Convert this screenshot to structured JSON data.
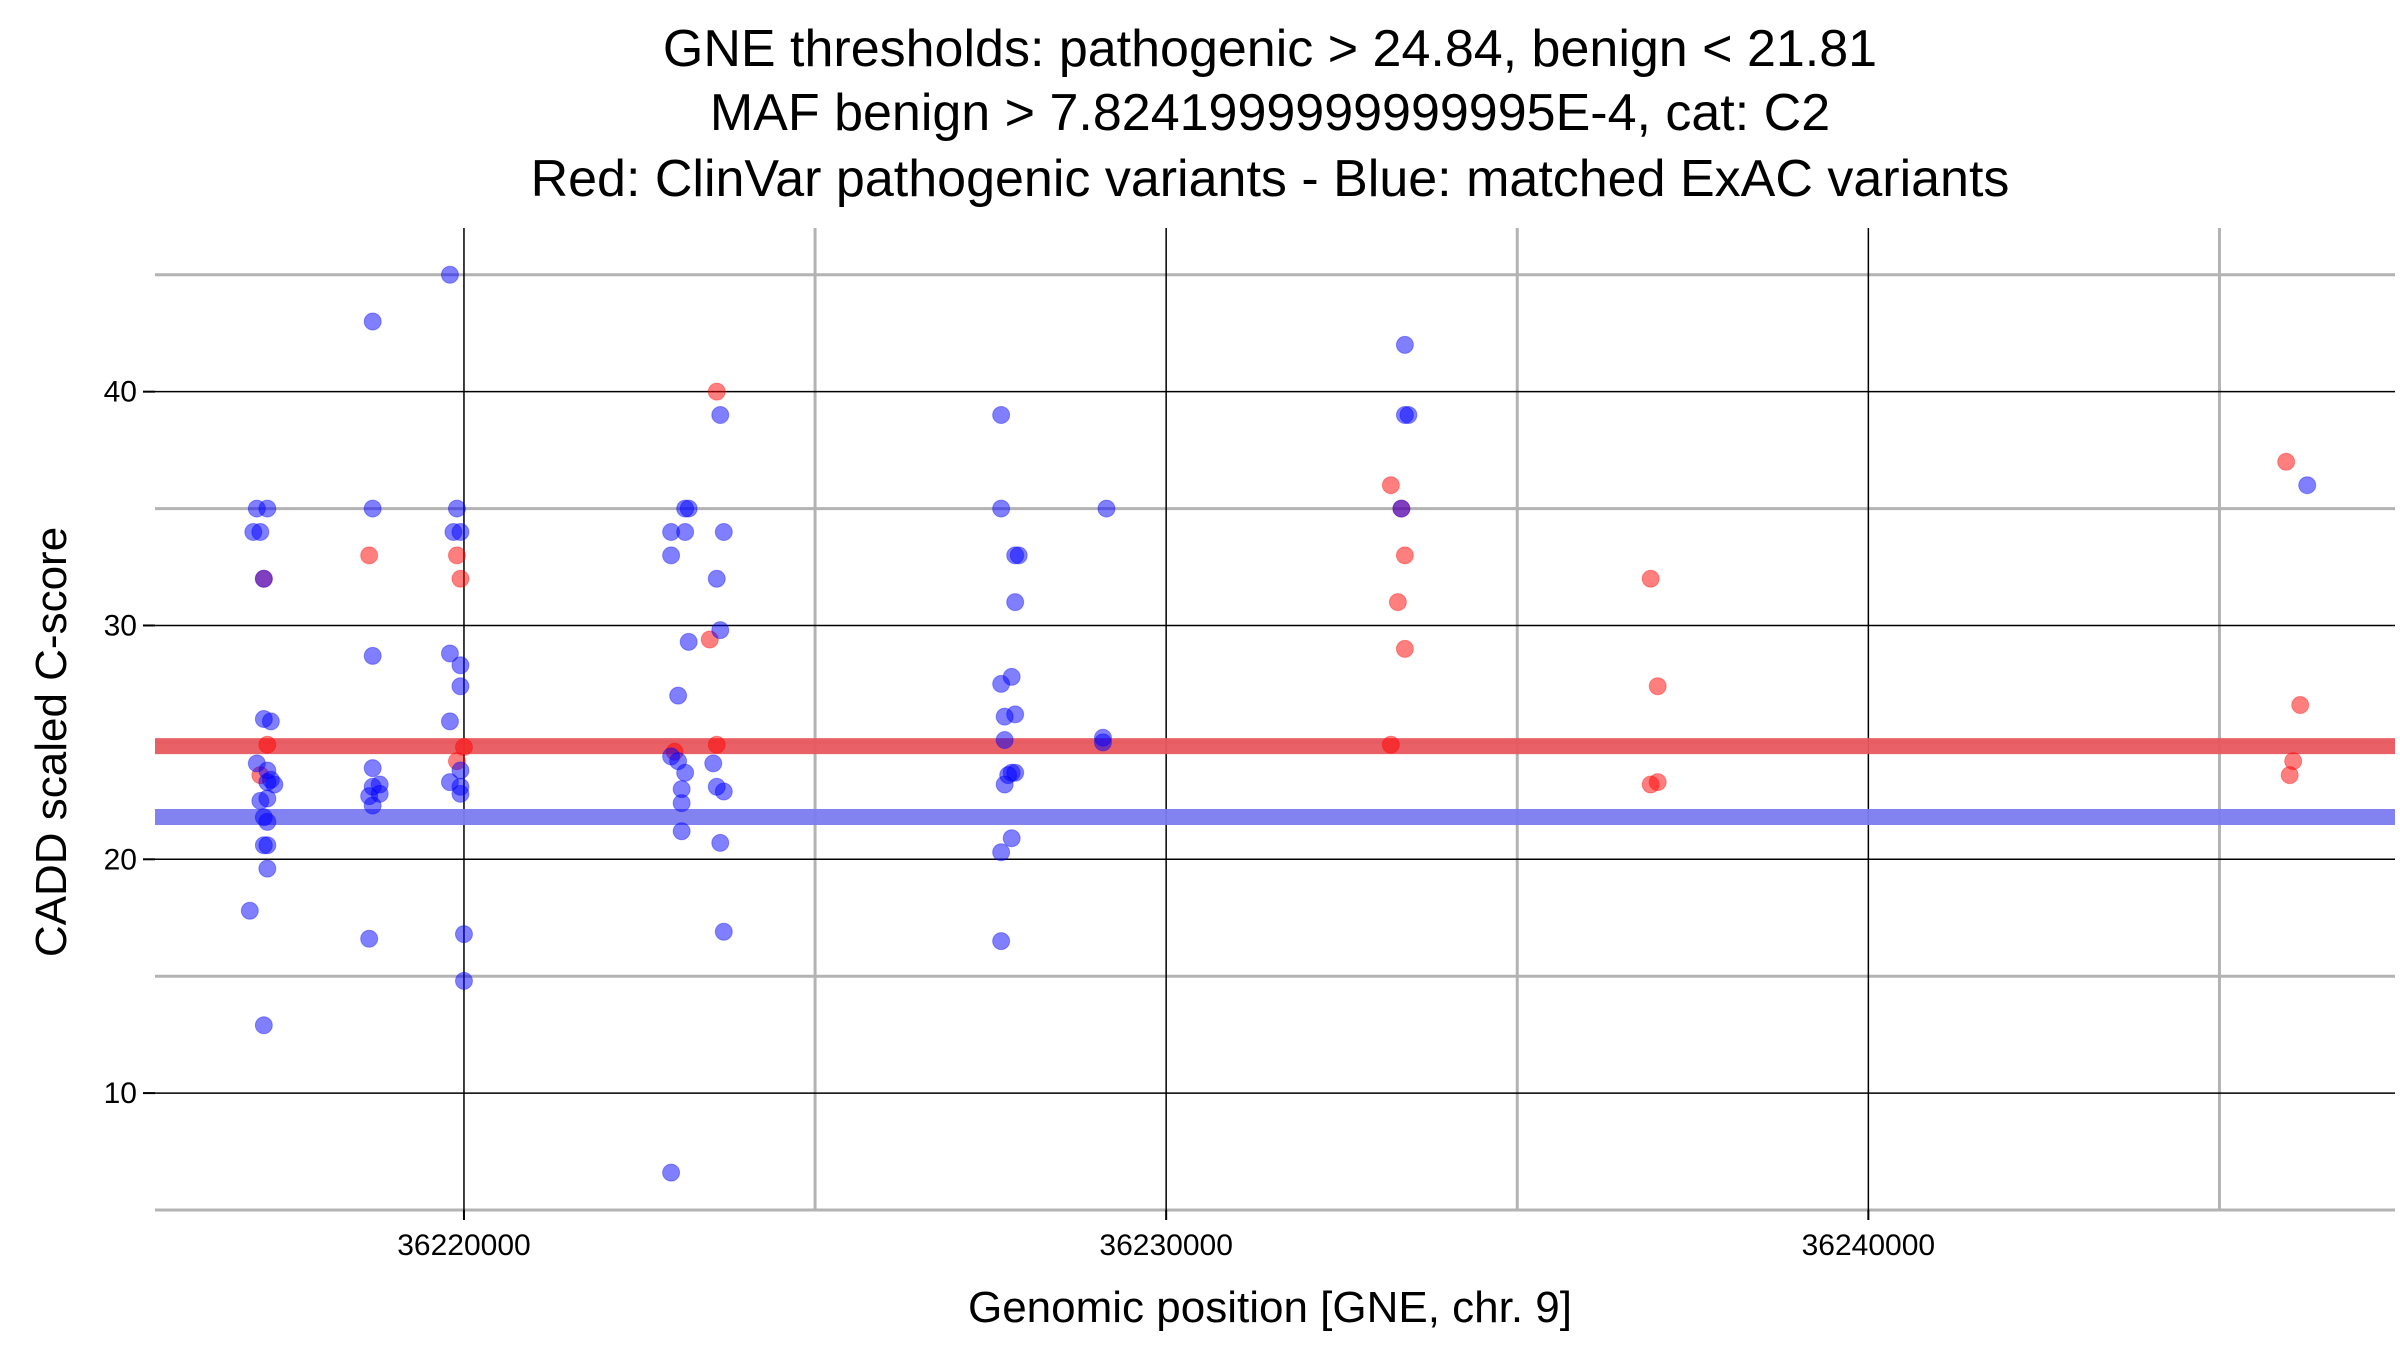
{
  "chart_data": {
    "type": "scatter",
    "title": [
      "GNE thresholds: pathogenic > 24.84, benign < 21.81",
      "MAF benign > 7.8241999999999995E-4, cat: C2",
      "Red: ClinVar pathogenic variants - Blue: matched ExAC variants"
    ],
    "xlabel": "Genomic position [GNE, chr. 9]",
    "ylabel": "CADD scaled C-score",
    "xlim": [
      36215600,
      36247500
    ],
    "ylim": [
      5,
      47
    ],
    "x_ticks": [
      36220000,
      36230000,
      36240000
    ],
    "y_ticks": [
      10,
      20,
      30,
      40
    ],
    "grid": true,
    "thresholds": [
      {
        "value": 24.84,
        "color": "#e8585e"
      },
      {
        "value": 21.81,
        "color": "#7b7bf0"
      }
    ],
    "series": [
      {
        "color": "#ff0000",
        "points": [
          [
            36217150,
            32
          ],
          [
            36217100,
            23.6
          ],
          [
            36217200,
            24.9
          ],
          [
            36218650,
            33
          ],
          [
            36219900,
            33
          ],
          [
            36219950,
            32
          ],
          [
            36219900,
            24.2
          ],
          [
            36220000,
            24.8
          ],
          [
            36223000,
            24.6
          ],
          [
            36223500,
            29.4
          ],
          [
            36223600,
            40
          ],
          [
            36223600,
            24.9
          ],
          [
            36233200,
            36
          ],
          [
            36233350,
            35
          ],
          [
            36233400,
            33
          ],
          [
            36233300,
            31
          ],
          [
            36233400,
            29
          ],
          [
            36233200,
            24.9
          ],
          [
            36236900,
            32
          ],
          [
            36237000,
            27.4
          ],
          [
            36236900,
            23.2
          ],
          [
            36237000,
            23.3
          ],
          [
            36245950,
            37
          ],
          [
            36246150,
            26.6
          ],
          [
            36246050,
            24.2
          ],
          [
            36246000,
            23.6
          ]
        ]
      },
      {
        "color": "#0000ff",
        "points": [
          [
            36217050,
            35
          ],
          [
            36217200,
            35
          ],
          [
            36217000,
            34
          ],
          [
            36217100,
            34
          ],
          [
            36217150,
            32
          ],
          [
            36217150,
            26
          ],
          [
            36217250,
            25.9
          ],
          [
            36217050,
            24.1
          ],
          [
            36217200,
            23.8
          ],
          [
            36217250,
            23.4
          ],
          [
            36217300,
            23.2
          ],
          [
            36217200,
            23.3
          ],
          [
            36217100,
            22.5
          ],
          [
            36217200,
            22.6
          ],
          [
            36217150,
            21.8
          ],
          [
            36217200,
            21.6
          ],
          [
            36217150,
            20.6
          ],
          [
            36217200,
            20.6
          ],
          [
            36217200,
            19.6
          ],
          [
            36216950,
            17.8
          ],
          [
            36217150,
            12.9
          ],
          [
            36218700,
            43
          ],
          [
            36218700,
            35
          ],
          [
            36218700,
            28.7
          ],
          [
            36218700,
            23.9
          ],
          [
            36218800,
            23.2
          ],
          [
            36218700,
            23.1
          ],
          [
            36218800,
            22.8
          ],
          [
            36218650,
            22.7
          ],
          [
            36218700,
            22.3
          ],
          [
            36218650,
            16.6
          ],
          [
            36219800,
            45
          ],
          [
            36219900,
            35
          ],
          [
            36219850,
            34
          ],
          [
            36219950,
            34
          ],
          [
            36219800,
            28.8
          ],
          [
            36219950,
            28.3
          ],
          [
            36219950,
            27.4
          ],
          [
            36219800,
            25.9
          ],
          [
            36219950,
            23.8
          ],
          [
            36219800,
            23.3
          ],
          [
            36219950,
            23.1
          ],
          [
            36219950,
            22.8
          ],
          [
            36220000,
            16.8
          ],
          [
            36220000,
            14.8
          ],
          [
            36222950,
            34
          ],
          [
            36223150,
            35
          ],
          [
            36223200,
            35
          ],
          [
            36223150,
            34
          ],
          [
            36222950,
            33
          ],
          [
            36223200,
            29.3
          ],
          [
            36223050,
            27
          ],
          [
            36222950,
            24.4
          ],
          [
            36223050,
            24.2
          ],
          [
            36223150,
            23.7
          ],
          [
            36223100,
            23
          ],
          [
            36223100,
            22.4
          ],
          [
            36223100,
            21.2
          ],
          [
            36222950,
            6.6
          ],
          [
            36223650,
            39
          ],
          [
            36223700,
            34
          ],
          [
            36223600,
            32
          ],
          [
            36223650,
            29.8
          ],
          [
            36223550,
            24.1
          ],
          [
            36223600,
            23.1
          ],
          [
            36223700,
            22.9
          ],
          [
            36223650,
            20.7
          ],
          [
            36223700,
            16.9
          ],
          [
            36227650,
            39
          ],
          [
            36227650,
            35
          ],
          [
            36227650,
            27.5
          ],
          [
            36227800,
            27.8
          ],
          [
            36227700,
            26.1
          ],
          [
            36227850,
            26.2
          ],
          [
            36227700,
            25.1
          ],
          [
            36227800,
            23.7
          ],
          [
            36227850,
            23.7
          ],
          [
            36227750,
            23.6
          ],
          [
            36227700,
            23.2
          ],
          [
            36227800,
            20.9
          ],
          [
            36227650,
            20.3
          ],
          [
            36227650,
            16.5
          ],
          [
            36227850,
            33
          ],
          [
            36227900,
            33
          ],
          [
            36227850,
            31
          ],
          [
            36229150,
            35
          ],
          [
            36229100,
            25.2
          ],
          [
            36229100,
            25.0
          ],
          [
            36233400,
            42
          ],
          [
            36233400,
            39
          ],
          [
            36233450,
            39
          ],
          [
            36233350,
            35
          ],
          [
            36246250,
            36
          ]
        ]
      }
    ]
  }
}
